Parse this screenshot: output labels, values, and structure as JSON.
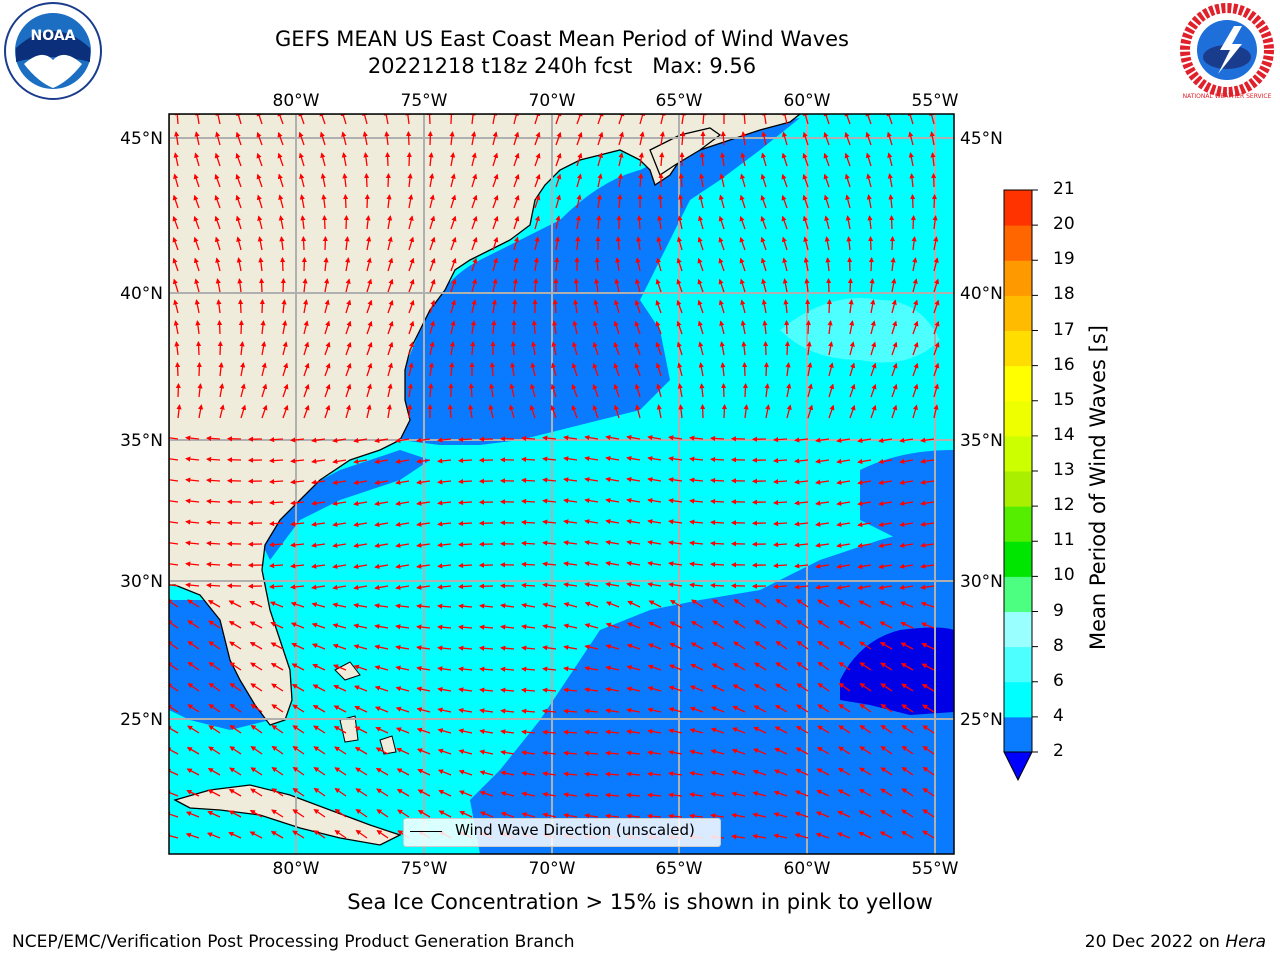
{
  "title": {
    "line1": "GEFS MEAN US East Coast Mean Period of Wind Waves",
    "line2": "20221218 t18z 240h fcst   Max: 9.56"
  },
  "map": {
    "lon_labels": [
      "80°W",
      "75°W",
      "70°W",
      "65°W",
      "60°W",
      "55°W"
    ],
    "lat_labels": [
      "45°N",
      "40°N",
      "35°N",
      "30°N",
      "25°N"
    ],
    "legend_label": "Wind Wave Direction (unscaled)",
    "land_color": "#efecdc",
    "grid_color": "#b0b0b0",
    "arrow_color": "#ff0000"
  },
  "colorbar": {
    "title": "Mean Period of Wind Waves [s]",
    "ticks": [
      "2",
      "4",
      "6",
      "8",
      "9",
      "10",
      "11",
      "12",
      "13",
      "14",
      "15",
      "16",
      "17",
      "18",
      "19",
      "20",
      "21"
    ],
    "colors": [
      "#0a7bff",
      "#00ffff",
      "#4dffff",
      "#99ffff",
      "#4dff80",
      "#00e600",
      "#55ee00",
      "#aaee00",
      "#ccff00",
      "#eeff00",
      "#ffff00",
      "#ffdd00",
      "#ffbb00",
      "#ff9900",
      "#ff6600",
      "#ff3300",
      "#ff0000"
    ],
    "under_color": "#0000ff"
  },
  "footer": {
    "note": "Sea Ice Concentration > 15% is shown in pink to yellow",
    "left": "NCEP/EMC/Verification Post Processing Product Generation Branch",
    "right_date": "20 Dec 2022 on ",
    "right_host": "Hera"
  },
  "logos": {
    "noaa_text": "NOAA",
    "nws_text": "NATIONAL WEATHER SERVICE"
  }
}
